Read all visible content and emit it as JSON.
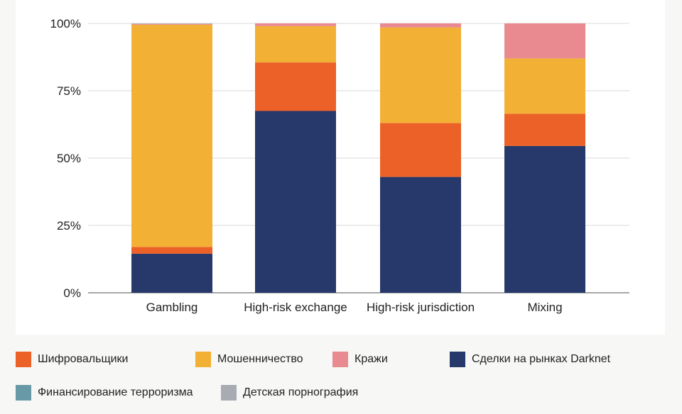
{
  "chart_data": {
    "type": "bar",
    "stacked": true,
    "categories": [
      "Gambling",
      "High-risk exchange",
      "High-risk jurisdiction",
      "Mixing"
    ],
    "ylim": [
      0,
      100
    ],
    "yticks": [
      0,
      25,
      50,
      75,
      100
    ],
    "ytick_labels": [
      "0%",
      "25%",
      "50%",
      "75%",
      "100%"
    ],
    "grid": true,
    "legend_position": "bottom",
    "series": [
      {
        "name": "Сделки на рынках Darknet",
        "color": "#27396b",
        "values": [
          14.5,
          67.5,
          43.0,
          54.5
        ]
      },
      {
        "name": "Шифровальщики",
        "color": "#ec6128",
        "values": [
          2.5,
          18.0,
          20.0,
          12.0
        ]
      },
      {
        "name": "Мошенничество",
        "color": "#f2b035",
        "values": [
          82.5,
          13.5,
          35.5,
          20.5
        ]
      },
      {
        "name": "Кражи",
        "color": "#e88a8f",
        "values": [
          0.3,
          1.0,
          1.5,
          13.0
        ]
      },
      {
        "name": "Финансирование терроризма",
        "color": "#6799a6",
        "values": [
          0,
          0,
          0,
          0
        ]
      },
      {
        "name": "Детская порнография",
        "color": "#a9abb2",
        "values": [
          0.2,
          0,
          0,
          0
        ]
      }
    ]
  },
  "legend": [
    {
      "label": "Шифровальщики",
      "color": "#ec6128"
    },
    {
      "label": "Мошенничество",
      "color": "#f2b035"
    },
    {
      "label": "Кражи",
      "color": "#e88a8f"
    },
    {
      "label": "Сделки на рынках Darknet",
      "color": "#27396b"
    },
    {
      "label": "Финансирование терроризма",
      "color": "#6799a6"
    },
    {
      "label": "Детская порнография",
      "color": "#a9abb2"
    }
  ]
}
